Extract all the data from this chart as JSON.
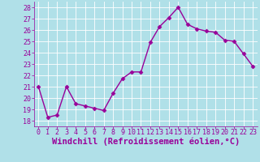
{
  "x": [
    0,
    1,
    2,
    3,
    4,
    5,
    6,
    7,
    8,
    9,
    10,
    11,
    12,
    13,
    14,
    15,
    16,
    17,
    18,
    19,
    20,
    21,
    22,
    23
  ],
  "y": [
    21.0,
    18.3,
    18.5,
    21.0,
    19.5,
    19.3,
    19.1,
    18.9,
    20.4,
    21.7,
    22.3,
    22.3,
    24.9,
    26.3,
    27.1,
    28.0,
    26.5,
    26.1,
    25.9,
    25.8,
    25.1,
    25.0,
    23.9,
    22.8
  ],
  "line_color": "#990099",
  "marker": "D",
  "marker_size": 2.5,
  "bg_color": "#b0e0e8",
  "grid_color": "#d0f0f8",
  "xlabel": "Windchill (Refroidissement éolien,°C)",
  "ylabel": "",
  "ylim": [
    17.5,
    28.5
  ],
  "xlim": [
    -0.5,
    23.5
  ],
  "yticks": [
    18,
    19,
    20,
    21,
    22,
    23,
    24,
    25,
    26,
    27,
    28
  ],
  "xticks": [
    0,
    1,
    2,
    3,
    4,
    5,
    6,
    7,
    8,
    9,
    10,
    11,
    12,
    13,
    14,
    15,
    16,
    17,
    18,
    19,
    20,
    21,
    22,
    23
  ],
  "xlabel_fontsize": 7.5,
  "tick_fontsize": 6.0,
  "line_width": 1.0,
  "font_family": "monospace"
}
